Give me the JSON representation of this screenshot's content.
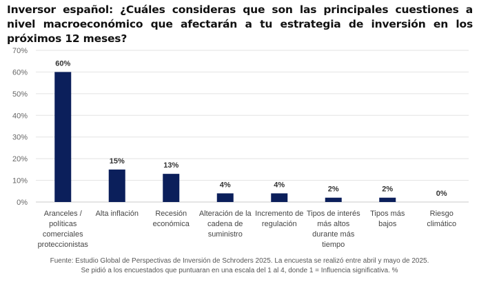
{
  "chart_data": {
    "type": "bar",
    "title": "Inversor español: ¿Cuáles consideras que son las principales cuestiones a nivel macroeconómico que afectarán a tu estrategia de inversión en los próximos 12 meses?",
    "categories": [
      [
        "Aranceles /",
        "políticas",
        "comerciales",
        "proteccionistas"
      ],
      [
        "Alta inflación"
      ],
      [
        "Recesión",
        "económica"
      ],
      [
        "Alteración de la",
        "cadena de",
        "suministro"
      ],
      [
        "Incremento de",
        "regulación"
      ],
      [
        "Tipos de interés",
        "más altos",
        "durante más",
        "tiempo"
      ],
      [
        "Tipos más",
        "bajos"
      ],
      [
        "Riesgo",
        "climático"
      ]
    ],
    "values": [
      60,
      15,
      13,
      4,
      4,
      2,
      2,
      0
    ],
    "data_labels": [
      "60%",
      "15%",
      "13%",
      "4%",
      "4%",
      "2%",
      "2%",
      "0%"
    ],
    "yticks": [
      "0%",
      "10%",
      "20%",
      "30%",
      "40%",
      "50%",
      "60%",
      "70%"
    ],
    "ylim": [
      0,
      70
    ],
    "xlabel": "",
    "ylabel": "",
    "grid": true,
    "bar_color": "#0b1f5b"
  },
  "footer": {
    "line1": "Fuente: Estudio Global de Perspectivas de Inversión de Schroders 2025. La encuesta se realizó entre abril y mayo de 2025.",
    "line2": "Se pidió a los encuestados que puntuaran en una escala del 1 al 4, donde 1 = Influencia significativa. %"
  }
}
